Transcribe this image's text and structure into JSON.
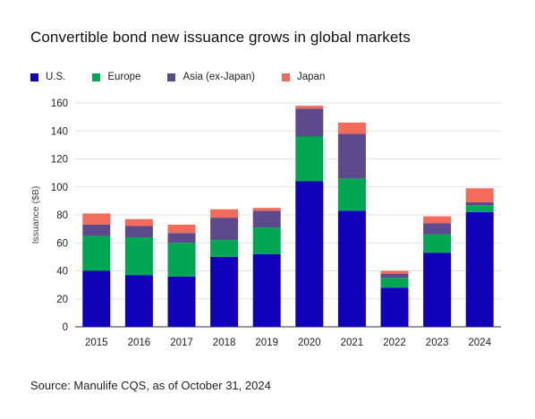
{
  "chart_data": {
    "type": "bar",
    "stacked": true,
    "title": "Convertible bond new issuance grows in global markets",
    "xlabel": "",
    "ylabel": "Issuance ($B)",
    "ylim": [
      0,
      160
    ],
    "yticks": [
      0,
      20,
      40,
      60,
      80,
      100,
      120,
      140,
      160
    ],
    "grid": true,
    "legend_position": "top-left",
    "categories": [
      "2015",
      "2016",
      "2017",
      "2018",
      "2019",
      "2020",
      "2021",
      "2022",
      "2023",
      "2024"
    ],
    "series": [
      {
        "name": "U.S.",
        "color": "#1000b8",
        "values": [
          40,
          37,
          36,
          50,
          52,
          104,
          83,
          28,
          53,
          82
        ]
      },
      {
        "name": "Europe",
        "color": "#00a651",
        "values": [
          25,
          27,
          24,
          12,
          19,
          32,
          23,
          7,
          13,
          5
        ]
      },
      {
        "name": "Asia (ex-Japan)",
        "color": "#5c4a8a",
        "values": [
          8,
          8,
          7,
          16,
          12,
          20,
          32,
          3,
          8,
          2
        ]
      },
      {
        "name": "Japan",
        "color": "#f26b5b",
        "values": [
          8,
          5,
          6,
          6,
          2,
          2,
          8,
          2,
          5,
          10
        ]
      }
    ],
    "source": "Source: Manulife CQS, as of October 31, 2024"
  }
}
